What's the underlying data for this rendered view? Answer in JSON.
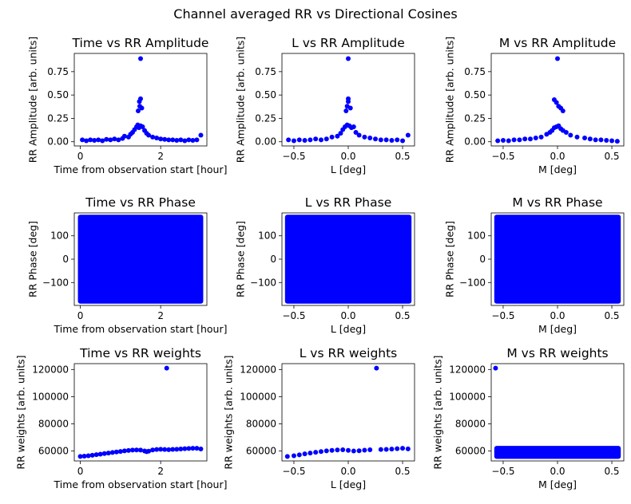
{
  "figure": {
    "suptitle": "Channel averaged RR vs Directional Cosines"
  },
  "chart_data": [
    {
      "id": "time-amp",
      "type": "scatter",
      "title": "Time vs RR Amplitude",
      "xlabel": "Time from observation start [hour]",
      "ylabel": "RR Amplitude [arb. units]",
      "xlim": [
        -0.15,
        3.15
      ],
      "ylim": [
        -0.045,
        0.945
      ],
      "xticks": [
        0,
        2
      ],
      "xticklabels": [
        "0",
        "2"
      ],
      "yticks": [
        0.0,
        0.25,
        0.5,
        0.75
      ],
      "yticklabels": [
        "0.00",
        "0.25",
        "0.50",
        "0.75"
      ],
      "color": "#0000ff",
      "points": [
        [
          0.05,
          0.02
        ],
        [
          0.15,
          0.01
        ],
        [
          0.25,
          0.02
        ],
        [
          0.35,
          0.015
        ],
        [
          0.45,
          0.02
        ],
        [
          0.55,
          0.01
        ],
        [
          0.65,
          0.025
        ],
        [
          0.75,
          0.02
        ],
        [
          0.85,
          0.03
        ],
        [
          0.95,
          0.02
        ],
        [
          1.05,
          0.035
        ],
        [
          1.1,
          0.06
        ],
        [
          1.2,
          0.05
        ],
        [
          1.25,
          0.08
        ],
        [
          1.3,
          0.1
        ],
        [
          1.35,
          0.13
        ],
        [
          1.4,
          0.16
        ],
        [
          1.43,
          0.18
        ],
        [
          1.46,
          0.15
        ],
        [
          1.5,
          0.17
        ],
        [
          1.55,
          0.16
        ],
        [
          1.6,
          0.12
        ],
        [
          1.65,
          0.09
        ],
        [
          1.7,
          0.07
        ],
        [
          1.8,
          0.05
        ],
        [
          1.9,
          0.04
        ],
        [
          2.0,
          0.03
        ],
        [
          2.1,
          0.025
        ],
        [
          2.2,
          0.02
        ],
        [
          2.3,
          0.02
        ],
        [
          2.4,
          0.015
        ],
        [
          2.5,
          0.02
        ],
        [
          2.6,
          0.01
        ],
        [
          2.7,
          0.02
        ],
        [
          2.8,
          0.015
        ],
        [
          2.9,
          0.02
        ],
        [
          3.0,
          0.07
        ],
        [
          1.44,
          0.33
        ],
        [
          1.47,
          0.43
        ],
        [
          1.5,
          0.46
        ],
        [
          1.53,
          0.36
        ],
        [
          1.48,
          0.38
        ],
        [
          1.5,
          0.89
        ]
      ]
    },
    {
      "id": "l-amp",
      "type": "scatter",
      "title": "L vs RR Amplitude",
      "xlabel": "L [deg]",
      "ylabel": "RR Amplitude [arb. units]",
      "xlim": [
        -0.61,
        0.61
      ],
      "ylim": [
        -0.045,
        0.945
      ],
      "xticks": [
        -0.5,
        0.0,
        0.5
      ],
      "xticklabels": [
        "−0.5",
        "0.0",
        "0.5"
      ],
      "yticks": [
        0.0,
        0.25,
        0.5,
        0.75
      ],
      "yticklabels": [
        "0.00",
        "0.25",
        "0.50",
        "0.75"
      ],
      "color": "#0000ff",
      "points": [
        [
          -0.55,
          0.02
        ],
        [
          -0.5,
          0.01
        ],
        [
          -0.45,
          0.02
        ],
        [
          -0.4,
          0.015
        ],
        [
          -0.35,
          0.02
        ],
        [
          -0.3,
          0.03
        ],
        [
          -0.25,
          0.02
        ],
        [
          -0.2,
          0.03
        ],
        [
          -0.15,
          0.05
        ],
        [
          -0.1,
          0.06
        ],
        [
          -0.07,
          0.09
        ],
        [
          -0.05,
          0.13
        ],
        [
          -0.03,
          0.16
        ],
        [
          -0.01,
          0.18
        ],
        [
          0.01,
          0.17
        ],
        [
          0.03,
          0.15
        ],
        [
          0.05,
          0.16
        ],
        [
          0.07,
          0.1
        ],
        [
          0.1,
          0.07
        ],
        [
          0.15,
          0.05
        ],
        [
          0.2,
          0.04
        ],
        [
          0.25,
          0.03
        ],
        [
          0.3,
          0.02
        ],
        [
          0.35,
          0.02
        ],
        [
          0.4,
          0.015
        ],
        [
          0.45,
          0.02
        ],
        [
          0.5,
          0.01
        ],
        [
          0.55,
          0.07
        ],
        [
          -0.02,
          0.33
        ],
        [
          0.0,
          0.43
        ],
        [
          0.0,
          0.46
        ],
        [
          0.02,
          0.36
        ],
        [
          -0.01,
          0.38
        ],
        [
          0.0,
          0.89
        ]
      ]
    },
    {
      "id": "m-amp",
      "type": "scatter",
      "title": "M vs RR Amplitude",
      "xlabel": "M [deg]",
      "ylabel": "RR Amplitude [arb. units]",
      "xlim": [
        -0.61,
        0.61
      ],
      "ylim": [
        -0.045,
        0.945
      ],
      "xticks": [
        -0.5,
        0.0,
        0.5
      ],
      "xticklabels": [
        "−0.5",
        "0.0",
        "0.5"
      ],
      "yticks": [
        0.0,
        0.25,
        0.5,
        0.75
      ],
      "yticklabels": [
        "0.00",
        "0.25",
        "0.50",
        "0.75"
      ],
      "color": "#0000ff",
      "points": [
        [
          -0.55,
          0.01
        ],
        [
          -0.5,
          0.015
        ],
        [
          -0.45,
          0.01
        ],
        [
          -0.4,
          0.02
        ],
        [
          -0.35,
          0.02
        ],
        [
          -0.3,
          0.03
        ],
        [
          -0.25,
          0.03
        ],
        [
          -0.2,
          0.04
        ],
        [
          -0.15,
          0.05
        ],
        [
          -0.1,
          0.08
        ],
        [
          -0.07,
          0.1
        ],
        [
          -0.05,
          0.12
        ],
        [
          -0.03,
          0.15
        ],
        [
          -0.01,
          0.16
        ],
        [
          0.01,
          0.17
        ],
        [
          0.03,
          0.14
        ],
        [
          0.05,
          0.12
        ],
        [
          0.08,
          0.1
        ],
        [
          0.12,
          0.07
        ],
        [
          0.18,
          0.05
        ],
        [
          0.25,
          0.04
        ],
        [
          0.3,
          0.03
        ],
        [
          0.35,
          0.02
        ],
        [
          0.4,
          0.02
        ],
        [
          0.45,
          0.015
        ],
        [
          0.5,
          0.01
        ],
        [
          0.55,
          0.005
        ],
        [
          -0.03,
          0.45
        ],
        [
          -0.01,
          0.42
        ],
        [
          0.01,
          0.38
        ],
        [
          0.03,
          0.36
        ],
        [
          0.05,
          0.33
        ],
        [
          0.0,
          0.89
        ]
      ]
    },
    {
      "id": "time-phase",
      "type": "scatter",
      "title": "Time vs RR Phase",
      "xlabel": "Time from observation start [hour]",
      "ylabel": "RR Phase [deg]",
      "xlim": [
        -0.15,
        3.15
      ],
      "ylim": [
        -198,
        198
      ],
      "xticks": [
        0,
        2
      ],
      "xticklabels": [
        "0",
        "2"
      ],
      "yticks": [
        -100,
        0,
        100
      ],
      "yticklabels": [
        "−100",
        "0",
        "100"
      ],
      "color": "#0000ff",
      "fill_x": [
        0.0,
        3.0
      ],
      "fill_y": [
        -180,
        180
      ],
      "points": []
    },
    {
      "id": "l-phase",
      "type": "scatter",
      "title": "L vs RR Phase",
      "xlabel": "L [deg]",
      "ylabel": "RR Phase [deg]",
      "xlim": [
        -0.61,
        0.61
      ],
      "ylim": [
        -198,
        198
      ],
      "xticks": [
        -0.5,
        0.0,
        0.5
      ],
      "xticklabels": [
        "−0.5",
        "0.0",
        "0.5"
      ],
      "yticks": [
        -100,
        0,
        100
      ],
      "yticklabels": [
        "−100",
        "0",
        "100"
      ],
      "color": "#0000ff",
      "fill_x": [
        -0.56,
        0.56
      ],
      "fill_y": [
        -180,
        180
      ],
      "points": []
    },
    {
      "id": "m-phase",
      "type": "scatter",
      "title": "M vs RR Phase",
      "xlabel": "M [deg]",
      "ylabel": "RR Phase [deg]",
      "xlim": [
        -0.61,
        0.61
      ],
      "ylim": [
        -198,
        198
      ],
      "xticks": [
        -0.5,
        0.0,
        0.5
      ],
      "xticklabels": [
        "−0.5",
        "0.0",
        "0.5"
      ],
      "yticks": [
        -100,
        0,
        100
      ],
      "yticklabels": [
        "−100",
        "0",
        "100"
      ],
      "color": "#0000ff",
      "fill_x": [
        -0.56,
        0.56
      ],
      "fill_y": [
        -180,
        180
      ],
      "points": []
    },
    {
      "id": "time-weights",
      "type": "scatter",
      "title": "Time vs RR weights",
      "xlabel": "Time from observation start [hour]",
      "ylabel": "RR weights [arb. units]",
      "xlim": [
        -0.15,
        3.15
      ],
      "ylim": [
        52700,
        124300
      ],
      "xticks": [
        0,
        2
      ],
      "xticklabels": [
        "0",
        "2"
      ],
      "yticks": [
        60000,
        80000,
        100000,
        120000
      ],
      "yticklabels": [
        "60000",
        "80000",
        "100000",
        "120000"
      ],
      "color": "#0000ff",
      "points": [
        [
          0.0,
          56000
        ],
        [
          0.1,
          56200
        ],
        [
          0.2,
          56500
        ],
        [
          0.3,
          56900
        ],
        [
          0.4,
          57300
        ],
        [
          0.5,
          57700
        ],
        [
          0.6,
          58100
        ],
        [
          0.7,
          58500
        ],
        [
          0.8,
          58900
        ],
        [
          0.9,
          59300
        ],
        [
          1.0,
          59700
        ],
        [
          1.1,
          60100
        ],
        [
          1.2,
          60400
        ],
        [
          1.3,
          60700
        ],
        [
          1.4,
          60800
        ],
        [
          1.5,
          60700
        ],
        [
          1.6,
          60000
        ],
        [
          1.65,
          59500
        ],
        [
          1.7,
          59900
        ],
        [
          1.8,
          60800
        ],
        [
          1.9,
          61100
        ],
        [
          2.0,
          61300
        ],
        [
          2.1,
          61100
        ],
        [
          2.2,
          61000
        ],
        [
          2.3,
          61200
        ],
        [
          2.4,
          61300
        ],
        [
          2.5,
          61500
        ],
        [
          2.6,
          61700
        ],
        [
          2.7,
          61900
        ],
        [
          2.8,
          62000
        ],
        [
          2.9,
          62000
        ],
        [
          3.0,
          61500
        ],
        [
          2.15,
          121000
        ]
      ]
    },
    {
      "id": "l-weights",
      "type": "scatter",
      "title": "L vs RR weights",
      "xlabel": "L [deg]",
      "ylabel": "RR weights [arb. units]",
      "xlim": [
        -0.61,
        0.61
      ],
      "ylim": [
        52700,
        124300
      ],
      "xticks": [
        -0.5,
        0.0,
        0.5
      ],
      "xticklabels": [
        "−0.5",
        "0.0",
        "0.5"
      ],
      "yticks": [
        60000,
        80000,
        100000,
        120000
      ],
      "yticklabels": [
        "60000",
        "80000",
        "100000",
        "120000"
      ],
      "color": "#0000ff",
      "points": [
        [
          -0.56,
          56000
        ],
        [
          -0.5,
          56500
        ],
        [
          -0.45,
          57200
        ],
        [
          -0.4,
          57900
        ],
        [
          -0.35,
          58500
        ],
        [
          -0.3,
          59100
        ],
        [
          -0.25,
          59600
        ],
        [
          -0.2,
          60100
        ],
        [
          -0.15,
          60500
        ],
        [
          -0.1,
          60800
        ],
        [
          -0.05,
          60900
        ],
        [
          0.0,
          60500
        ],
        [
          0.05,
          60000
        ],
        [
          0.1,
          60200
        ],
        [
          0.15,
          60600
        ],
        [
          0.2,
          60900
        ],
        [
          0.3,
          61100
        ],
        [
          0.35,
          61200
        ],
        [
          0.4,
          61400
        ],
        [
          0.45,
          61700
        ],
        [
          0.5,
          62000
        ],
        [
          0.55,
          61600
        ],
        [
          0.26,
          121000
        ]
      ]
    },
    {
      "id": "m-weights",
      "type": "scatter",
      "title": "M vs RR weights",
      "xlabel": "M [deg]",
      "ylabel": "RR weights [arb. units]",
      "xlim": [
        -0.61,
        0.61
      ],
      "ylim": [
        52700,
        124300
      ],
      "xticks": [
        -0.5,
        0.0,
        0.5
      ],
      "xticklabels": [
        "−0.5",
        "0.0",
        "0.5"
      ],
      "yticks": [
        60000,
        80000,
        100000,
        120000
      ],
      "yticklabels": [
        "60000",
        "80000",
        "100000",
        "120000"
      ],
      "color": "#0000ff",
      "fill_x": [
        -0.56,
        0.56
      ],
      "fill_y": [
        56000,
        62000
      ],
      "points": [
        [
          -0.57,
          121000
        ]
      ]
    }
  ]
}
